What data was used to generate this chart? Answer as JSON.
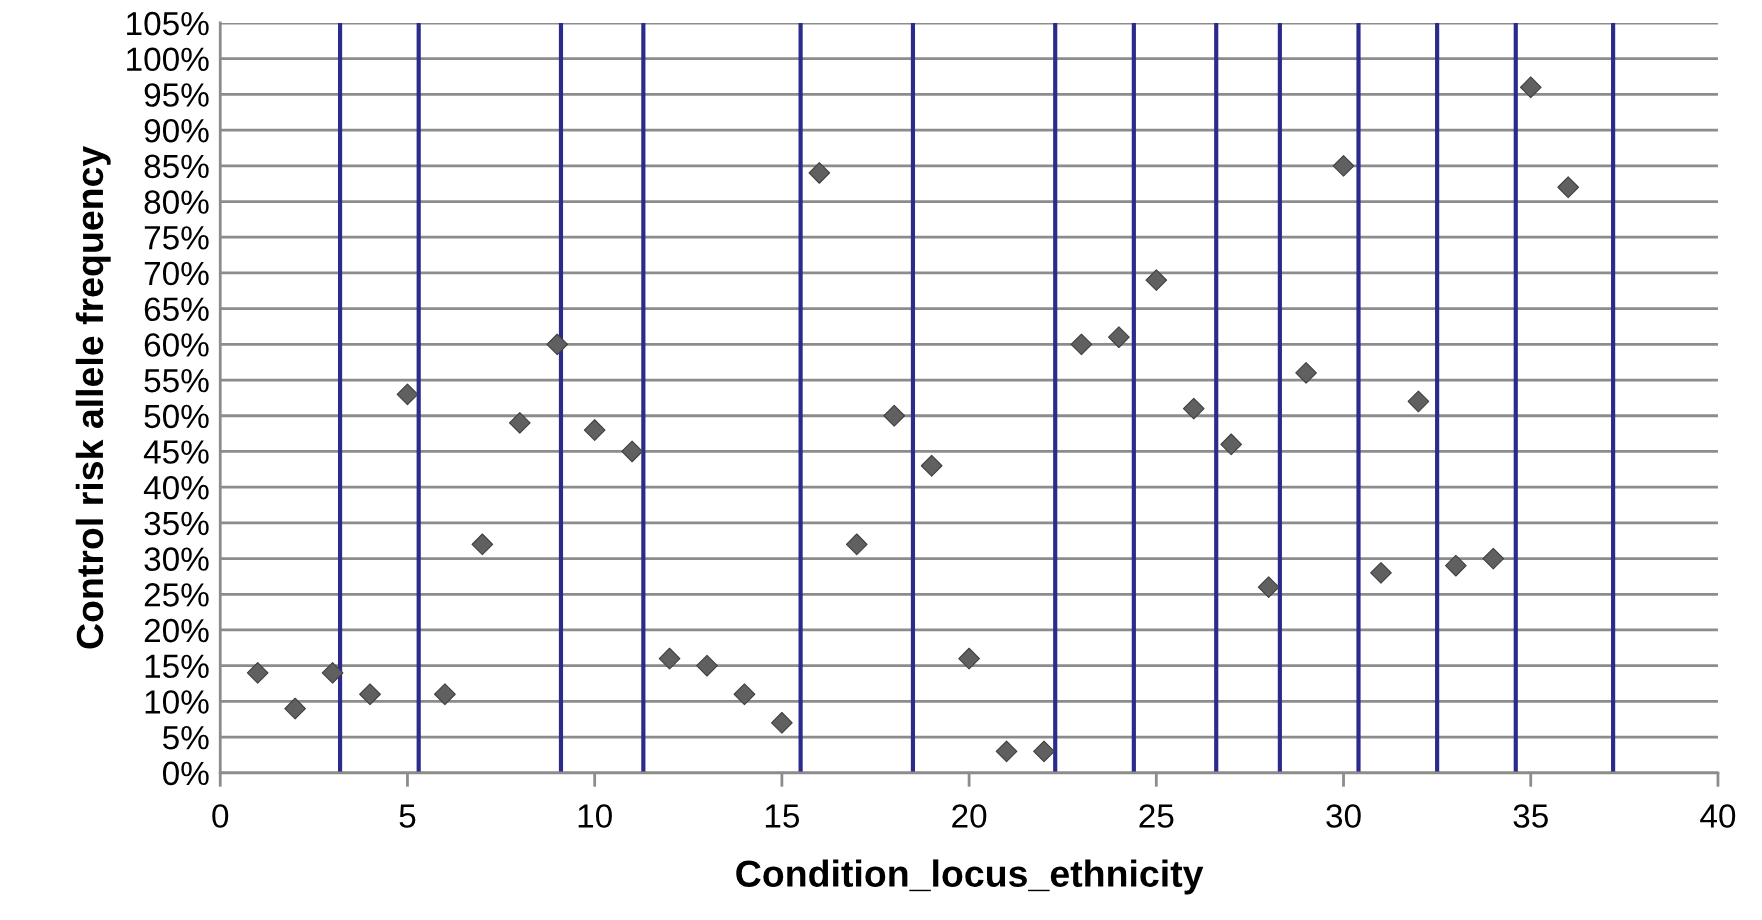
{
  "chart_data": {
    "type": "scatter",
    "xlabel": "Condition_locus_ethnicity",
    "ylabel": "Control risk allele frequency",
    "series": [
      {
        "color": "#606060",
        "x": [
          1,
          2,
          3,
          4,
          5,
          6,
          7,
          8,
          9,
          10,
          11,
          12,
          13,
          14,
          15,
          16,
          17,
          18,
          19,
          20,
          21,
          22,
          23,
          24,
          25,
          26,
          27,
          28,
          29,
          30,
          31,
          32,
          33,
          34,
          35,
          36
        ],
        "values": [
          14,
          9,
          14,
          11,
          53,
          11,
          32,
          49,
          60,
          48,
          45,
          16,
          15,
          11,
          7,
          84,
          32,
          50,
          43,
          16,
          3,
          3,
          60,
          61,
          69,
          51,
          46,
          26,
          56,
          85,
          28,
          52,
          29,
          30,
          96,
          82
        ]
      }
    ],
    "marker": "diamond",
    "grid": "y",
    "legend": false,
    "xlim": [
      0,
      40
    ],
    "xticks": [
      0,
      5,
      10,
      15,
      20,
      25,
      30,
      35,
      40
    ],
    "ylim": [
      0,
      105
    ],
    "yticks": [
      {
        "value": 0,
        "label": "0%"
      },
      {
        "value": 5,
        "label": "5%"
      },
      {
        "value": 10,
        "label": "10%"
      },
      {
        "value": 15,
        "label": "15%"
      },
      {
        "value": 20,
        "label": "20%"
      },
      {
        "value": 25,
        "label": "25%"
      },
      {
        "value": 30,
        "label": "30%"
      },
      {
        "value": 35,
        "label": "35%"
      },
      {
        "value": 40,
        "label": "40%"
      },
      {
        "value": 45,
        "label": "45%"
      },
      {
        "value": 50,
        "label": "50%"
      },
      {
        "value": 55,
        "label": "55%"
      },
      {
        "value": 60,
        "label": "60%"
      },
      {
        "value": 65,
        "label": "65%"
      },
      {
        "value": 70,
        "label": "70%"
      },
      {
        "value": 75,
        "label": "75%"
      },
      {
        "value": 80,
        "label": "80%"
      },
      {
        "value": 85,
        "label": "85%"
      },
      {
        "value": 90,
        "label": "90%"
      },
      {
        "value": 95,
        "label": "95%"
      },
      {
        "value": 100,
        "label": "100%"
      },
      {
        "value": 105,
        "label": "105%"
      }
    ],
    "ref_lines": [
      {
        "axis": "x",
        "value": 3.2,
        "color": "#2b2b8c"
      },
      {
        "axis": "x",
        "value": 5.3,
        "color": "#2b2b8c"
      },
      {
        "axis": "x",
        "value": 9.1,
        "color": "#2b2b8c"
      },
      {
        "axis": "x",
        "value": 11.3,
        "color": "#2b2b8c"
      },
      {
        "axis": "x",
        "value": 15.5,
        "color": "#2b2b8c"
      },
      {
        "axis": "x",
        "value": 18.5,
        "color": "#2b2b8c"
      },
      {
        "axis": "x",
        "value": 22.3,
        "color": "#2b2b8c"
      },
      {
        "axis": "x",
        "value": 24.4,
        "color": "#2b2b8c"
      },
      {
        "axis": "x",
        "value": 26.6,
        "color": "#2b2b8c"
      },
      {
        "axis": "x",
        "value": 28.3,
        "color": "#2b2b8c"
      },
      {
        "axis": "x",
        "value": 30.4,
        "color": "#2b2b8c"
      },
      {
        "axis": "x",
        "value": 32.5,
        "color": "#2b2b8c"
      },
      {
        "axis": "x",
        "value": 34.6,
        "color": "#2b2b8c"
      },
      {
        "axis": "x",
        "value": 37.2,
        "color": "#2b2b8c"
      }
    ]
  }
}
